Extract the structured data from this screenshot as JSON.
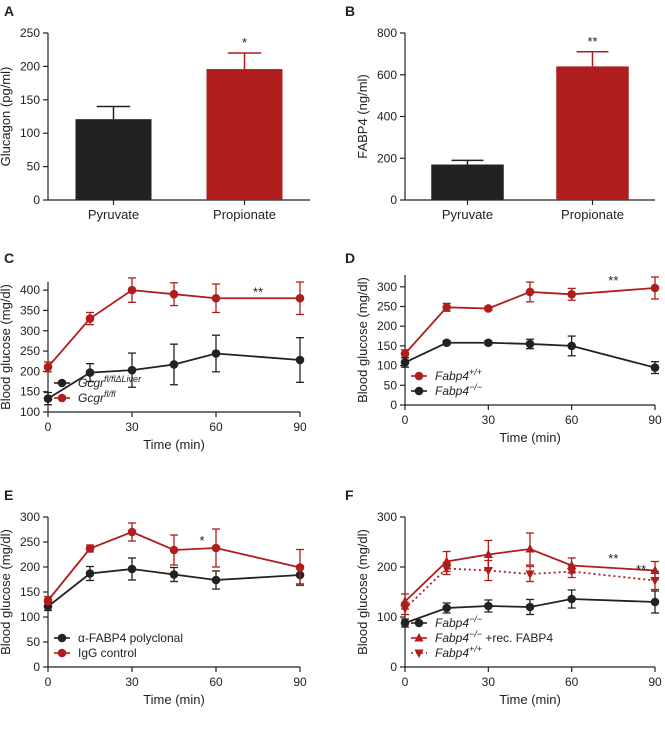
{
  "colors": {
    "black_series": "#222222",
    "red_series": "#b01d1d",
    "axis": "#222222"
  },
  "chart_data": [
    {
      "panel": "A",
      "type": "bar",
      "categories": [
        "Pyruvate",
        "Propionate"
      ],
      "values": [
        121,
        196
      ],
      "errors": [
        19,
        24
      ],
      "bar_colors": [
        "#222222",
        "#b01d1d"
      ],
      "ylabel": "Glucagon (pg/ml)",
      "ylim": [
        0,
        250
      ],
      "yticks": [
        0,
        50,
        100,
        150,
        200,
        250
      ],
      "significance": [
        {
          "category": "Propionate",
          "label": "*"
        }
      ]
    },
    {
      "panel": "B",
      "type": "bar",
      "categories": [
        "Pyruvate",
        "Propionate"
      ],
      "values": [
        170,
        640
      ],
      "errors": [
        20,
        70
      ],
      "bar_colors": [
        "#222222",
        "#b01d1d"
      ],
      "ylabel": "FABP4 (ng/ml)",
      "ylim": [
        0,
        800
      ],
      "yticks": [
        0,
        200,
        400,
        600,
        800
      ],
      "significance": [
        {
          "category": "Propionate",
          "label": "**"
        }
      ]
    },
    {
      "panel": "C",
      "type": "line",
      "x": [
        0,
        15,
        30,
        45,
        60,
        90
      ],
      "xlabel": "Time (min)",
      "ylabel": "Blood glucose (mg/dl)",
      "xlim": [
        0,
        90
      ],
      "xticks": [
        0,
        30,
        60,
        90
      ],
      "ylim": [
        100,
        420
      ],
      "yticks": [
        100,
        150,
        200,
        250,
        300,
        350,
        400
      ],
      "legend_position": "bottom-left",
      "series": [
        {
          "legend_base": "Gcgr",
          "legend_sup": "fl/flΔLiver",
          "color": "#222222",
          "marker": "circle",
          "dashed": false,
          "values": [
            133,
            197,
            203,
            217,
            244,
            228
          ],
          "errors": [
            15,
            22,
            42,
            50,
            45,
            55
          ]
        },
        {
          "legend_base": "Gcgr",
          "legend_sup": "fl/fl",
          "color": "#b01d1d",
          "marker": "circle",
          "dashed": false,
          "values": [
            211,
            330,
            400,
            390,
            380,
            380
          ],
          "errors": [
            12,
            15,
            30,
            28,
            35,
            40
          ]
        }
      ],
      "annotations": [
        {
          "x": 75,
          "y": 380,
          "label": "**"
        }
      ]
    },
    {
      "panel": "D",
      "type": "line",
      "x": [
        0,
        15,
        30,
        45,
        60,
        90
      ],
      "xlabel": "Time (min)",
      "ylabel": "Blood glucose (mg/dl)",
      "xlim": [
        0,
        90
      ],
      "xticks": [
        0,
        30,
        60,
        90
      ],
      "ylim": [
        0,
        330
      ],
      "yticks": [
        0,
        50,
        100,
        150,
        200,
        250,
        300
      ],
      "legend_position": "bottom-left",
      "series": [
        {
          "legend_base": "Fabp4",
          "legend_sup": "+/+",
          "color": "#b01d1d",
          "marker": "circle",
          "dashed": false,
          "values": [
            130,
            248,
            245,
            287,
            281,
            297
          ],
          "errors": [
            10,
            10,
            5,
            25,
            15,
            28
          ]
        },
        {
          "legend_base": "Fabp4",
          "legend_sup": "−/−",
          "color": "#222222",
          "marker": "circle",
          "dashed": false,
          "values": [
            108,
            158,
            158,
            155,
            150,
            95
          ],
          "errors": [
            12,
            5,
            5,
            12,
            25,
            15
          ]
        }
      ],
      "annotations": [
        {
          "x": 75,
          "y": 300,
          "label": "**"
        }
      ]
    },
    {
      "panel": "E",
      "type": "line",
      "x": [
        0,
        15,
        30,
        45,
        60,
        90
      ],
      "xlabel": "Time (min)",
      "ylabel": "Blood glucose (mg/dl)",
      "xlim": [
        0,
        90
      ],
      "xticks": [
        0,
        30,
        60,
        90
      ],
      "ylim": [
        0,
        300
      ],
      "yticks": [
        0,
        50,
        100,
        150,
        200,
        250,
        300
      ],
      "legend_position": "bottom-left",
      "series": [
        {
          "legend_base": "α-FABP4 polyclonal",
          "legend_sup": "",
          "color": "#222222",
          "marker": "circle",
          "dashed": false,
          "values": [
            121,
            187,
            196,
            185,
            174,
            184
          ],
          "errors": [
            8,
            14,
            22,
            14,
            18,
            18
          ]
        },
        {
          "legend_base": "IgG control",
          "legend_sup": "",
          "color": "#b01d1d",
          "marker": "circle",
          "dashed": false,
          "values": [
            133,
            237,
            270,
            234,
            238,
            199
          ],
          "errors": [
            8,
            7,
            18,
            30,
            38,
            36
          ]
        }
      ],
      "annotations": [
        {
          "x": 55,
          "y": 240,
          "label": "*"
        }
      ]
    },
    {
      "panel": "F",
      "type": "line",
      "x": [
        0,
        15,
        30,
        45,
        60,
        90
      ],
      "xlabel": "Time (min)",
      "ylabel": "Blood glucose (mg/dl)",
      "xlim": [
        0,
        90
      ],
      "xticks": [
        0,
        30,
        60,
        90
      ],
      "ylim": [
        0,
        300
      ],
      "yticks": [
        0,
        100,
        200,
        300
      ],
      "legend_position": "bottom-left",
      "series": [
        {
          "legend_base": "Fabp4",
          "legend_sup": "−/−",
          "legend_extra": "",
          "color": "#222222",
          "marker": "circle",
          "dashed": false,
          "values": [
            88,
            118,
            122,
            120,
            136,
            130
          ],
          "errors": [
            8,
            10,
            12,
            15,
            18,
            22
          ]
        },
        {
          "legend_base": "Fabp4",
          "legend_sup": "−/−",
          "legend_extra": " +rec. FABP4",
          "color": "#b01d1d",
          "marker": "triangle-up",
          "dashed": false,
          "values": [
            131,
            211,
            225,
            236,
            203,
            193
          ],
          "errors": [
            15,
            20,
            28,
            32,
            15,
            18
          ]
        },
        {
          "legend_base": "Fabp4",
          "legend_sup": "+/+",
          "legend_extra": "",
          "color": "#b01d1d",
          "marker": "triangle-down",
          "dashed": true,
          "values": [
            117,
            197,
            193,
            186,
            191,
            173
          ],
          "errors": [
            12,
            12,
            20,
            15,
            12,
            18
          ]
        }
      ],
      "annotations": [
        {
          "x": 75,
          "y": 204,
          "label": "**"
        },
        {
          "x": 85,
          "y": 182,
          "label": "**"
        }
      ]
    }
  ]
}
